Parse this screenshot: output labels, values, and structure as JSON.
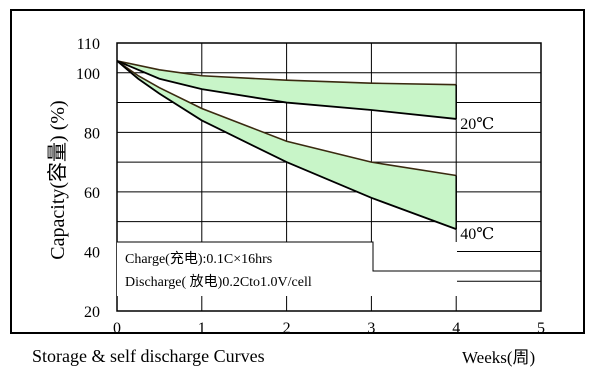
{
  "chart_data": {
    "type": "area",
    "ylabel": "Capacity(容量) (%)",
    "xlabel": "Weeks(周)",
    "x_ticks": [
      0,
      1,
      2,
      3,
      4,
      5
    ],
    "y_ticks": [
      20,
      40,
      60,
      80,
      100,
      110
    ],
    "xlim": [
      0,
      5
    ],
    "ylim": [
      20,
      110
    ],
    "fill_color": "#c8f5c8",
    "line_color": "#3a2a10",
    "bands": [
      {
        "label": "20℃",
        "upper": {
          "x": [
            0,
            0.5,
            1,
            2,
            3,
            4
          ],
          "y": [
            104,
            101,
            99,
            97.5,
            96.5,
            96
          ]
        },
        "lower": {
          "x": [
            0,
            0.5,
            1,
            2,
            3,
            4
          ],
          "y": [
            104,
            98,
            94.5,
            90,
            87.5,
            84.5
          ]
        }
      },
      {
        "label": "40℃",
        "upper": {
          "x": [
            0,
            0.25,
            0.5,
            1,
            2,
            3,
            4
          ],
          "y": [
            104,
            99,
            95,
            88,
            77,
            70,
            65.5
          ]
        },
        "lower": {
          "x": [
            0,
            0.25,
            0.5,
            1,
            2,
            3,
            4
          ],
          "y": [
            104,
            98,
            93,
            84,
            70,
            58,
            47.5
          ]
        }
      }
    ],
    "annotations": [
      "Charge(充电):0.1C×16hrs",
      "Discharge(  放电)0.2Cto1.0V/cell"
    ],
    "caption": "Storage & self discharge Curves"
  }
}
